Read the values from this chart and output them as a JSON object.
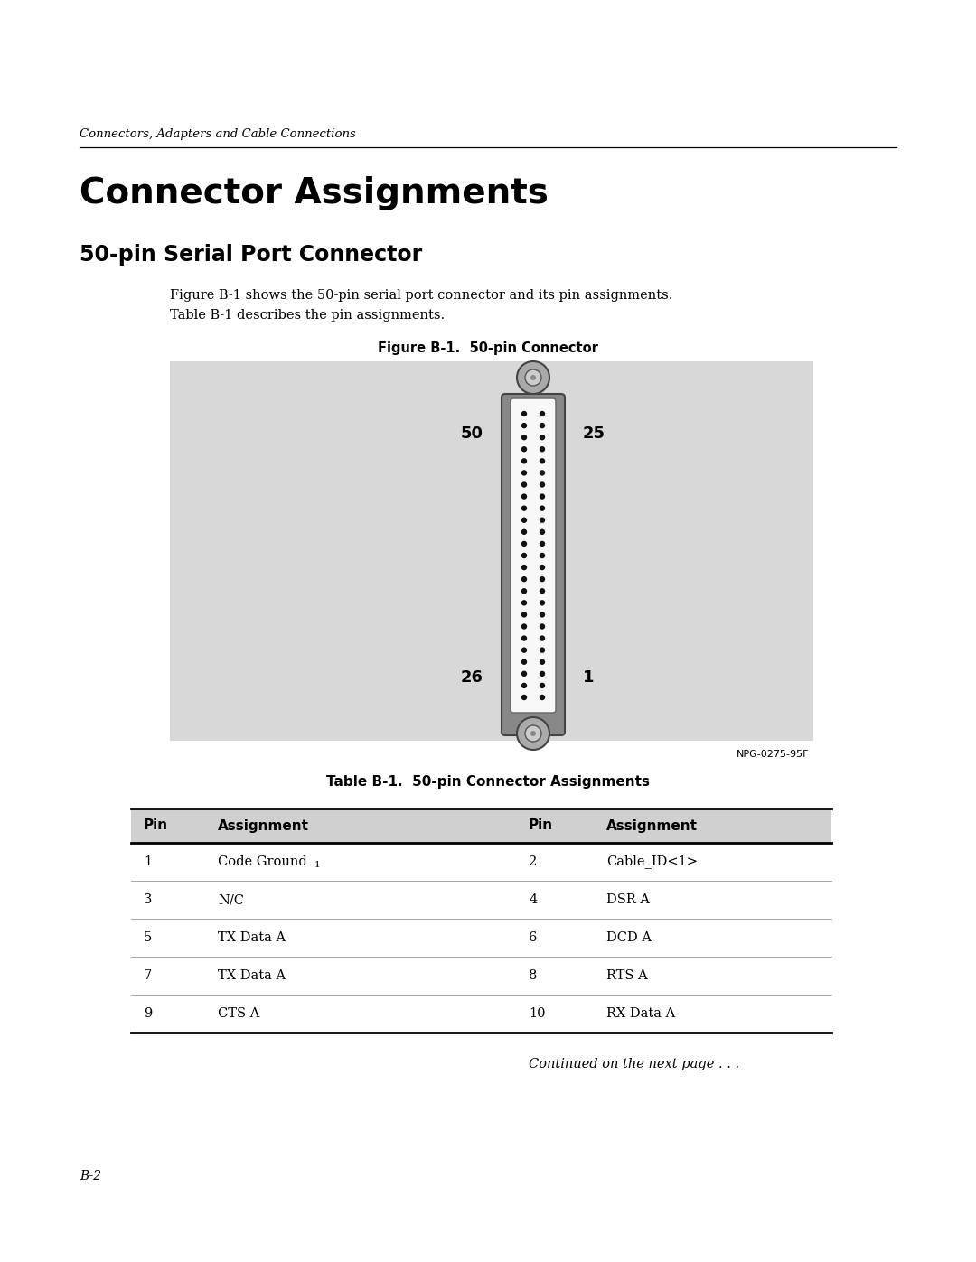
{
  "page_bg": "#ffffff",
  "header_italic": "Connectors, Adapters and Cable Connections",
  "main_title": "Connector Assignments",
  "section_title": "50-pin Serial Port Connector",
  "body_text_line1": "Figure B-1 shows the 50-pin serial port connector and its pin assignments.",
  "body_text_line2": "Table B-1 describes the pin assignments.",
  "figure_caption": "Figure B-1.  50-pin Connector",
  "figure_bg": "#d8d8d8",
  "watermark": "NPG-0275-95F",
  "table_caption": "Table B-1.  50-pin Connector Assignments",
  "table_headers": [
    "Pin",
    "Assignment",
    "Pin",
    "Assignment"
  ],
  "table_rows": [
    [
      "1",
      "Code Ground",
      "2",
      "Cable_ID<1>"
    ],
    [
      "3",
      "N/C",
      "4",
      "DSR A"
    ],
    [
      "5",
      "TX Data A",
      "6",
      "DCD A"
    ],
    [
      "7",
      "TX Data A",
      "8",
      "RTS A"
    ],
    [
      "9",
      "CTS A",
      "10",
      "RX Data A"
    ]
  ],
  "continued_text": "Continued on the next page . . .",
  "page_number": "B-2"
}
